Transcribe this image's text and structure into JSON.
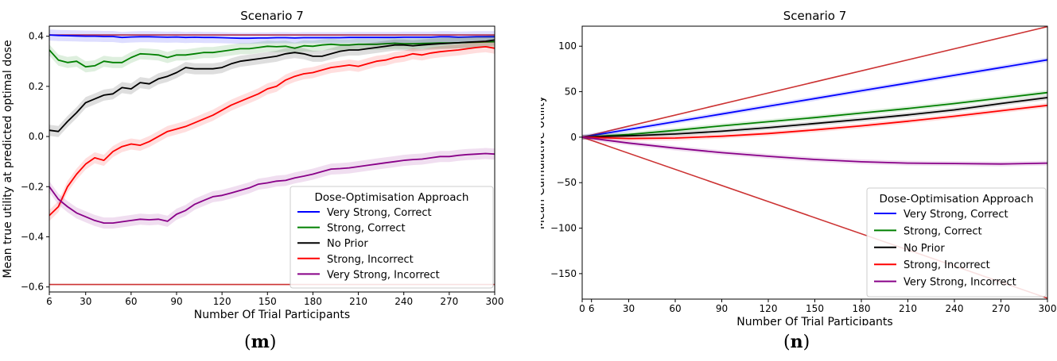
{
  "chart_data": [
    {
      "type": "line",
      "caption": "m",
      "title": "Scenario 7",
      "xlabel": "Number Of Trial Participants",
      "ylabel": "Mean true utility at predicted optimal dose",
      "xlim": [
        6,
        300
      ],
      "ylim": [
        -0.62,
        0.44
      ],
      "xticks": [
        6,
        30,
        60,
        90,
        120,
        150,
        180,
        210,
        240,
        270,
        300
      ],
      "yticks": [
        -0.6,
        -0.4,
        -0.2,
        0.0,
        0.2,
        0.4
      ],
      "ytick_labels": [
        "−0.6",
        "−0.4",
        "−0.2",
        "0.0",
        "0.2",
        "0.4"
      ],
      "reference_lines": [
        {
          "y": 0.405,
          "color": "#cc3333"
        },
        {
          "y": -0.59,
          "color": "#cc3333"
        }
      ],
      "legend": {
        "title": "Dose-Optimisation Approach",
        "placement": "lower-right"
      },
      "x": [
        6,
        12,
        18,
        24,
        30,
        36,
        42,
        48,
        54,
        60,
        66,
        72,
        78,
        84,
        90,
        96,
        102,
        108,
        114,
        120,
        126,
        132,
        138,
        144,
        150,
        156,
        162,
        168,
        174,
        180,
        186,
        192,
        198,
        204,
        210,
        216,
        222,
        228,
        234,
        240,
        246,
        252,
        258,
        264,
        270,
        276,
        282,
        288,
        294,
        300
      ],
      "series": [
        {
          "name": "Very Strong, Correct",
          "color": "#0000ff",
          "values": [
            0.405,
            0.403,
            0.402,
            0.401,
            0.4,
            0.4,
            0.399,
            0.399,
            0.395,
            0.397,
            0.398,
            0.398,
            0.397,
            0.396,
            0.397,
            0.395,
            0.396,
            0.395,
            0.395,
            0.394,
            0.393,
            0.392,
            0.392,
            0.393,
            0.393,
            0.394,
            0.394,
            0.393,
            0.394,
            0.394,
            0.394,
            0.394,
            0.394,
            0.395,
            0.395,
            0.395,
            0.395,
            0.395,
            0.395,
            0.396,
            0.396,
            0.396,
            0.396,
            0.398,
            0.398,
            0.396,
            0.397,
            0.398,
            0.398,
            0.398
          ]
        },
        {
          "name": "Strong, Correct",
          "color": "#008000",
          "values": [
            0.345,
            0.305,
            0.295,
            0.3,
            0.278,
            0.282,
            0.3,
            0.295,
            0.295,
            0.315,
            0.33,
            0.328,
            0.325,
            0.315,
            0.325,
            0.325,
            0.33,
            0.335,
            0.335,
            0.34,
            0.345,
            0.35,
            0.35,
            0.355,
            0.36,
            0.358,
            0.36,
            0.352,
            0.362,
            0.36,
            0.365,
            0.368,
            0.365,
            0.365,
            0.368,
            0.368,
            0.368,
            0.37,
            0.372,
            0.37,
            0.37,
            0.371,
            0.372,
            0.373,
            0.373,
            0.374,
            0.375,
            0.376,
            0.377,
            0.378
          ]
        },
        {
          "name": "No Prior",
          "color": "#000000",
          "values": [
            0.025,
            0.02,
            0.06,
            0.095,
            0.135,
            0.15,
            0.165,
            0.17,
            0.195,
            0.19,
            0.215,
            0.21,
            0.23,
            0.24,
            0.255,
            0.275,
            0.27,
            0.27,
            0.27,
            0.275,
            0.29,
            0.3,
            0.305,
            0.31,
            0.315,
            0.32,
            0.33,
            0.335,
            0.33,
            0.32,
            0.32,
            0.33,
            0.34,
            0.345,
            0.345,
            0.35,
            0.355,
            0.36,
            0.365,
            0.365,
            0.362,
            0.365,
            0.368,
            0.37,
            0.372,
            0.374,
            0.376,
            0.378,
            0.38,
            0.385
          ]
        },
        {
          "name": "Strong, Incorrect",
          "color": "#ff0000",
          "values": [
            -0.315,
            -0.28,
            -0.2,
            -0.15,
            -0.11,
            -0.085,
            -0.095,
            -0.06,
            -0.04,
            -0.03,
            -0.035,
            -0.02,
            0.0,
            0.02,
            0.03,
            0.04,
            0.055,
            0.07,
            0.085,
            0.105,
            0.125,
            0.14,
            0.155,
            0.17,
            0.19,
            0.2,
            0.225,
            0.24,
            0.25,
            0.255,
            0.265,
            0.275,
            0.28,
            0.285,
            0.28,
            0.29,
            0.3,
            0.305,
            0.315,
            0.32,
            0.33,
            0.325,
            0.333,
            0.338,
            0.342,
            0.345,
            0.35,
            0.355,
            0.358,
            0.352
          ]
        },
        {
          "name": "Very Strong, Incorrect",
          "color": "#880088",
          "values": [
            -0.2,
            -0.25,
            -0.28,
            -0.305,
            -0.32,
            -0.335,
            -0.345,
            -0.345,
            -0.34,
            -0.335,
            -0.33,
            -0.332,
            -0.33,
            -0.338,
            -0.31,
            -0.295,
            -0.27,
            -0.255,
            -0.24,
            -0.235,
            -0.225,
            -0.215,
            -0.205,
            -0.19,
            -0.185,
            -0.178,
            -0.175,
            -0.165,
            -0.158,
            -0.15,
            -0.14,
            -0.13,
            -0.128,
            -0.125,
            -0.12,
            -0.115,
            -0.11,
            -0.105,
            -0.1,
            -0.095,
            -0.092,
            -0.09,
            -0.085,
            -0.08,
            -0.08,
            -0.075,
            -0.072,
            -0.07,
            -0.068,
            -0.07
          ]
        }
      ]
    },
    {
      "type": "line",
      "caption": "n",
      "title": "Scenario 7",
      "xlabel": "Number Of Trial Participants",
      "ylabel": "Mean Cumulative Utility",
      "xlim": [
        0,
        300
      ],
      "ylim": [
        -178,
        122
      ],
      "xticks": [
        0,
        6,
        30,
        60,
        90,
        120,
        150,
        180,
        210,
        240,
        270,
        300
      ],
      "yticks": [
        -150,
        -100,
        -50,
        0,
        50,
        100
      ],
      "ytick_labels": [
        "−150",
        "−100",
        "−50",
        "0",
        "50",
        "100"
      ],
      "reference_lines": [
        {
          "x": [
            0,
            300
          ],
          "y": [
            0,
            121.5
          ],
          "color": "#cc3333"
        },
        {
          "x": [
            0,
            300
          ],
          "y": [
            0,
            -177
          ],
          "color": "#cc3333"
        }
      ],
      "legend": {
        "title": "Dose-Optimisation Approach",
        "placement": "lower-right"
      },
      "x": [
        0,
        30,
        60,
        90,
        120,
        150,
        180,
        210,
        240,
        270,
        300
      ],
      "series": [
        {
          "name": "Very Strong, Correct",
          "color": "#0000ff",
          "values": [
            0,
            8.5,
            17,
            25.5,
            34,
            42.5,
            51,
            59.5,
            68,
            76.5,
            85
          ]
        },
        {
          "name": "Strong, Correct",
          "color": "#008000",
          "values": [
            0,
            3,
            7.5,
            12.5,
            17,
            21.5,
            26.5,
            31.5,
            37,
            43,
            49
          ]
        },
        {
          "name": "No Prior",
          "color": "#000000",
          "values": [
            0,
            1.5,
            3.5,
            6.5,
            10.5,
            15,
            19.5,
            24.5,
            30,
            37,
            43.5
          ]
        },
        {
          "name": "Strong, Incorrect",
          "color": "#ff0000",
          "values": [
            0,
            -1.5,
            -1,
            1,
            4,
            8,
            12.5,
            17.5,
            23,
            29,
            35
          ]
        },
        {
          "name": "Very Strong, Incorrect",
          "color": "#880088",
          "values": [
            0,
            -6.5,
            -12,
            -17,
            -21,
            -24.5,
            -27,
            -28.5,
            -29,
            -29.5,
            -28.5
          ]
        }
      ]
    }
  ]
}
